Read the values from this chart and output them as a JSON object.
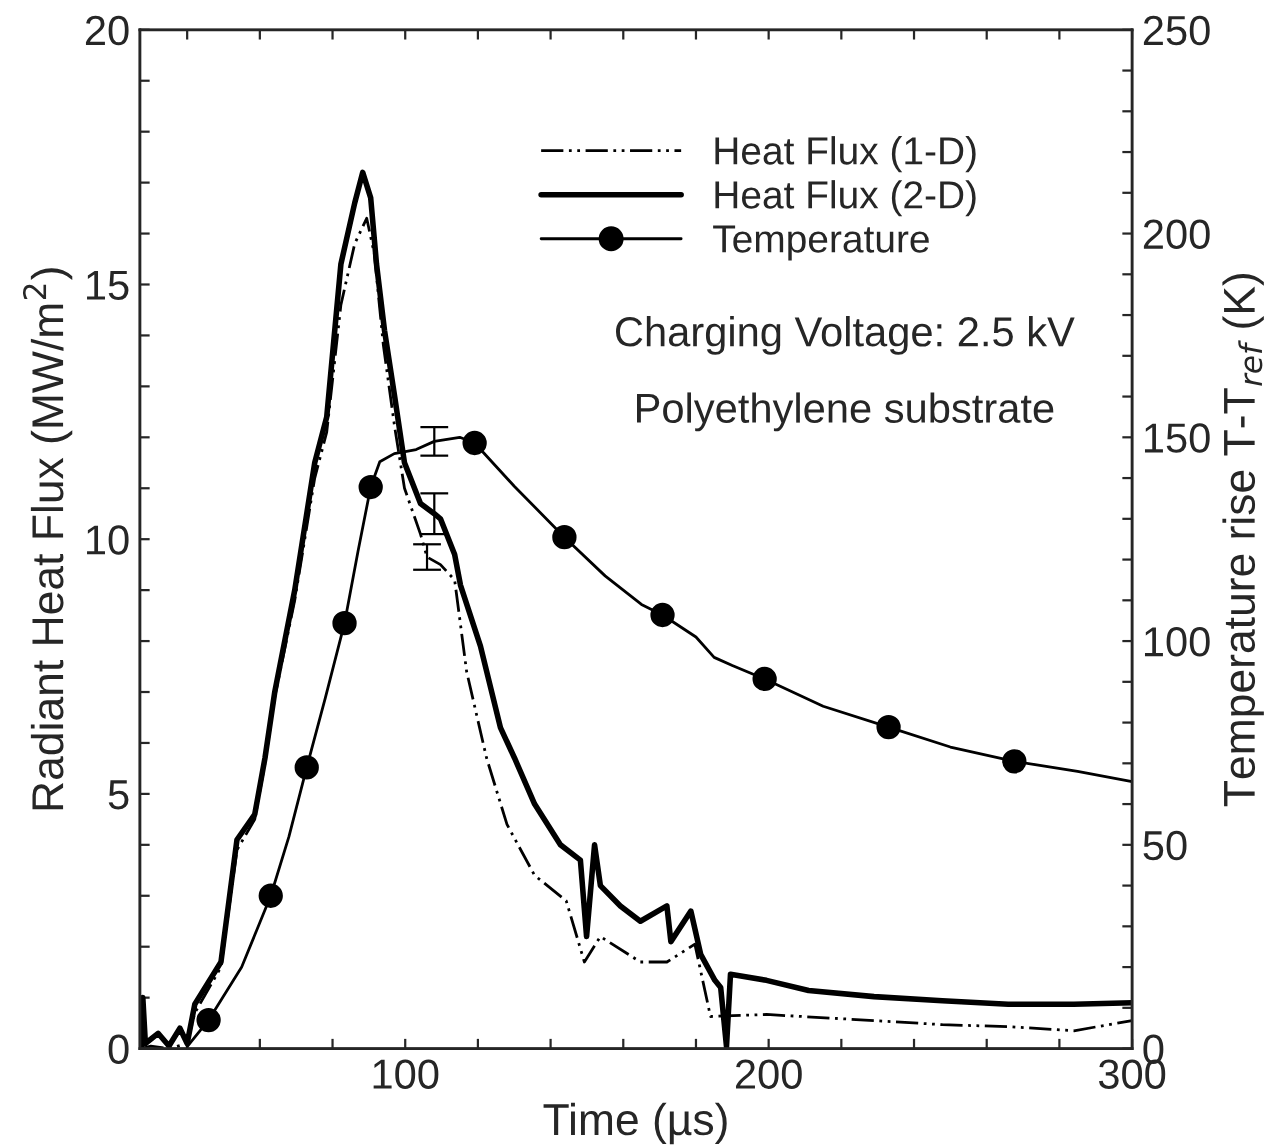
{
  "chart_data": {
    "type": "line",
    "xlabel": "Time (µs)",
    "ylabel": "Radiant Heat Flux (MW/m$^{2}$)",
    "y2label": "Temperature rise T-T$_{ref}$ (K)",
    "xlim": [
      27,
      300
    ],
    "xticks": [
      {
        "value": 40,
        "label": null
      },
      {
        "value": 60,
        "label": null
      },
      {
        "value": 80,
        "label": null
      },
      100,
      {
        "value": 120,
        "label": null
      },
      {
        "value": 140,
        "label": null
      },
      {
        "value": 160,
        "label": null
      },
      {
        "value": 180,
        "label": null
      },
      200,
      {
        "value": 220,
        "label": null
      },
      {
        "value": 240,
        "label": null
      },
      {
        "value": 260,
        "label": null
      },
      {
        "value": 280,
        "label": null
      },
      300
    ],
    "ylim": [
      0,
      20
    ],
    "yticks": [
      0,
      {
        "value": 1,
        "label": null
      },
      {
        "value": 2,
        "label": null
      },
      {
        "value": 3,
        "label": null
      },
      {
        "value": 4,
        "label": null
      },
      5,
      {
        "value": 6,
        "label": null
      },
      {
        "value": 7,
        "label": null
      },
      {
        "value": 8,
        "label": null
      },
      {
        "value": 9,
        "label": null
      },
      10,
      {
        "value": 11,
        "label": null
      },
      {
        "value": 12,
        "label": null
      },
      {
        "value": 13,
        "label": null
      },
      {
        "value": 14,
        "label": null
      },
      15,
      {
        "value": 16,
        "label": null
      },
      {
        "value": 17,
        "label": null
      },
      {
        "value": 18,
        "label": null
      },
      {
        "value": 19,
        "label": null
      },
      20
    ],
    "y2lim": [
      0,
      250
    ],
    "y2ticks": [
      0,
      {
        "value": 10,
        "label": null
      },
      {
        "value": 20,
        "label": null
      },
      {
        "value": 30,
        "label": null
      },
      {
        "value": 40,
        "label": null
      },
      50,
      {
        "value": 60,
        "label": null
      },
      {
        "value": 70,
        "label": null
      },
      {
        "value": 80,
        "label": null
      },
      {
        "value": 90,
        "label": null
      },
      100,
      {
        "value": 110,
        "label": null
      },
      {
        "value": 120,
        "label": null
      },
      {
        "value": 130,
        "label": null
      },
      {
        "value": 140,
        "label": null
      },
      150,
      {
        "value": 160,
        "label": null
      },
      {
        "value": 170,
        "label": null
      },
      {
        "value": 180,
        "label": null
      },
      {
        "value": 190,
        "label": null
      },
      200,
      {
        "value": 210,
        "label": null
      },
      {
        "value": 220,
        "label": null
      },
      {
        "value": 230,
        "label": null
      },
      {
        "value": 240,
        "label": null
      },
      250
    ],
    "grid": false,
    "legend": "top right",
    "annotations": [
      "Charging Voltage: 2.5 kV",
      "Polyethylene substrate"
    ],
    "series": [
      {
        "name": "Heat Flux (1-D)",
        "color": "#000000",
        "line_style": "dashdot",
        "marker": "none",
        "x": [
          27.5,
          30,
          35,
          40,
          42.1,
          49.3,
          53.7,
          58.6,
          61.4,
          64.1,
          69.6,
          75.1,
          78.4,
          82.3,
          86.1,
          89.4,
          91.5,
          94,
          97.1,
          99.8,
          104.2,
          106,
          109.7,
          113.6,
          116.9,
          122.4,
          128,
          135.6,
          144.3,
          149.3,
          153.7,
          164.7,
          172,
          179.7,
          184,
          199.4,
          229,
          247.8,
          265.9,
          284,
          300
        ],
        "values": [
          0,
          0.05,
          0,
          0.1,
          0.7,
          1.6,
          3.9,
          4.5,
          5.6,
          6.9,
          8.8,
          11.2,
          12.1,
          14.6,
          15.8,
          16.3,
          15.6,
          13.8,
          12.2,
          11.0,
          10.1,
          9.65,
          9.5,
          9.2,
          7.4,
          5.7,
          4.4,
          3.4,
          2.9,
          1.7,
          2.2,
          1.7,
          1.7,
          2.05,
          0.63,
          0.67,
          0.55,
          0.47,
          0.43,
          0.35,
          0.55
        ],
        "errors": [
          null,
          null,
          null,
          null,
          null,
          null,
          null,
          null,
          null,
          null,
          null,
          null,
          null,
          null,
          null,
          null,
          null,
          null,
          null,
          null,
          null,
          0.25,
          null,
          null,
          null,
          null,
          null,
          null,
          null,
          null,
          null,
          null,
          null,
          null,
          null,
          null,
          null,
          null,
          null,
          null,
          null
        ]
      },
      {
        "name": "Heat Flux (2-D)",
        "color": "#000000",
        "line_style": "solid",
        "marker": "none",
        "x": [
          27.5,
          27.8,
          28.5,
          32,
          35,
          38,
          40,
          42.1,
          49.3,
          53.7,
          58.6,
          61.4,
          64.1,
          69.6,
          75.1,
          78.4,
          82.3,
          86.1,
          88.3,
          90.5,
          92.1,
          94.3,
          97.1,
          99.8,
          104.2,
          108,
          109.7,
          113.6,
          115.2,
          120.7,
          126.2,
          130.1,
          135.6,
          142.7,
          148.2,
          149.9,
          152.1,
          153.7,
          159.2,
          164.7,
          172,
          173.1,
          178.6,
          181.3,
          185.2,
          186.8,
          188.4,
          189.5,
          199.4,
          211,
          229,
          247.8,
          265.9,
          284,
          300
        ],
        "values": [
          0,
          1.0,
          0.1,
          0.3,
          0.05,
          0.4,
          0.1,
          0.87,
          1.7,
          4.1,
          4.6,
          5.7,
          7.0,
          9.0,
          11.5,
          12.4,
          15.4,
          16.6,
          17.2,
          16.7,
          15.4,
          14.1,
          12.8,
          11.5,
          10.7,
          10.5,
          10.4,
          9.7,
          9.1,
          7.9,
          6.3,
          5.7,
          4.8,
          4.0,
          3.7,
          2.2,
          4.0,
          3.2,
          2.8,
          2.5,
          2.8,
          2.1,
          2.7,
          1.85,
          1.34,
          1.2,
          0.04,
          1.46,
          1.34,
          1.14,
          1.02,
          0.94,
          0.87,
          0.87,
          0.9
        ],
        "errors": [
          null,
          null,
          null,
          null,
          null,
          null,
          null,
          null,
          null,
          null,
          null,
          null,
          null,
          null,
          null,
          null,
          null,
          null,
          null,
          null,
          null,
          null,
          null,
          null,
          null,
          0.4,
          null,
          null,
          null,
          null,
          null,
          null,
          null,
          null,
          null,
          null,
          null,
          null,
          null,
          null,
          null,
          null,
          null,
          null,
          null,
          null,
          null,
          null,
          null,
          null,
          null,
          null,
          null,
          null,
          null
        ]
      },
      {
        "name": "Temperature",
        "axis": "y2",
        "color": "#000000",
        "line_style": "solid",
        "marker": "none",
        "x": [
          40,
          45.9,
          55,
          63,
          68,
          72.9,
          78,
          83.3,
          87,
          90.5,
          93,
          97,
          103,
          108,
          115,
          119.1,
          130,
          143.8,
          155,
          165,
          170.8,
          180,
          185,
          190,
          198.9,
          215,
          233,
          250,
          267.6,
          285,
          300
        ],
        "values": [
          0.5,
          7,
          20,
          37.5,
          52,
          69,
          86,
          104.4,
          122,
          137.8,
          144,
          146,
          147,
          149,
          150,
          148.6,
          138,
          125.5,
          116,
          109,
          106.4,
          101,
          96,
          94,
          90.7,
          84,
          78.9,
          74,
          70.5,
          68,
          65.5
        ],
        "errors": [
          null,
          null,
          null,
          null,
          null,
          null,
          null,
          null,
          null,
          null,
          null,
          null,
          null,
          3.5,
          null,
          null,
          null,
          null,
          null,
          null,
          null,
          null,
          null,
          null,
          null,
          null,
          null,
          null,
          null,
          null,
          null
        ]
      },
      {
        "type": "scatter",
        "axis": "y2",
        "color": "#000000",
        "marker": "circle",
        "x": [
          45.9,
          63,
          72.9,
          83.3,
          90.5,
          119.1,
          143.8,
          170.8,
          198.9,
          233,
          267.6
        ],
        "values": [
          7,
          37.5,
          69,
          104.4,
          137.8,
          148.6,
          125.5,
          106.4,
          90.7,
          78.9,
          70.5
        ]
      }
    ]
  }
}
